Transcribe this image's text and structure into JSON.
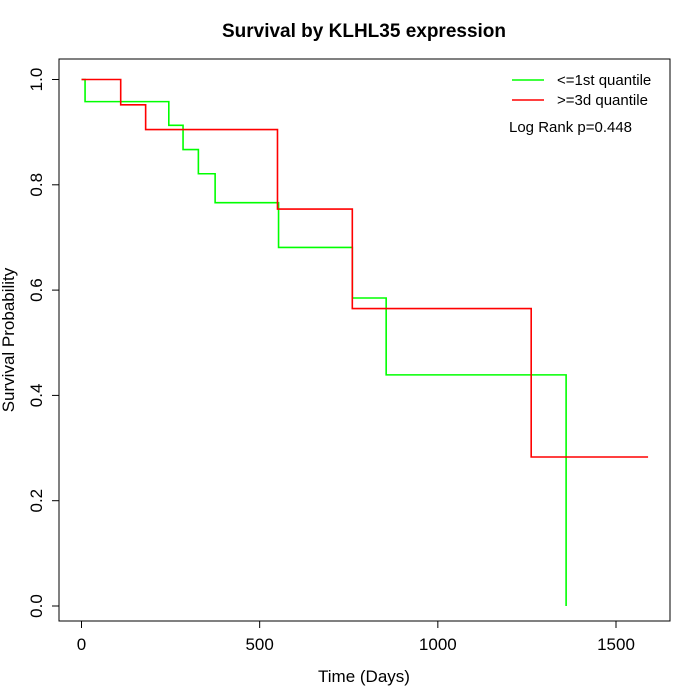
{
  "chart_data": {
    "type": "line",
    "subtype": "kaplan-meier-step",
    "title": "Survival by KLHL35 expression",
    "xlabel": "Time (Days)",
    "ylabel": "Survival Probability",
    "xlim": [
      0,
      1650
    ],
    "ylim": [
      0,
      1.0
    ],
    "xticks": [
      0,
      500,
      1000,
      1500
    ],
    "yticks": [
      0.0,
      0.2,
      0.4,
      0.6,
      0.8,
      1.0
    ],
    "xtick_labels": [
      "0",
      "500",
      "1000",
      "1500"
    ],
    "ytick_labels": [
      "0.0",
      "0.2",
      "0.4",
      "0.6",
      "0.8",
      "1.0"
    ],
    "grid": false,
    "legend_position": "top-right",
    "series": [
      {
        "name": "<=1st quantile",
        "color": "#00ff00",
        "x": [
          0,
          10,
          245,
          285,
          328,
          375,
          553,
          760,
          855,
          1360,
          1360
        ],
        "y": [
          1.0,
          0.958,
          0.913,
          0.867,
          0.821,
          0.766,
          0.681,
          0.585,
          0.439,
          0.439,
          0.0
        ]
      },
      {
        "name": ">=3d quantile",
        "color": "#ff0000",
        "x": [
          0,
          110,
          180,
          550,
          760,
          1262,
          1590
        ],
        "y": [
          1.0,
          0.952,
          0.905,
          0.754,
          0.565,
          0.283,
          0.283
        ]
      }
    ],
    "annotations": [
      "Log Rank p=0.448"
    ]
  }
}
